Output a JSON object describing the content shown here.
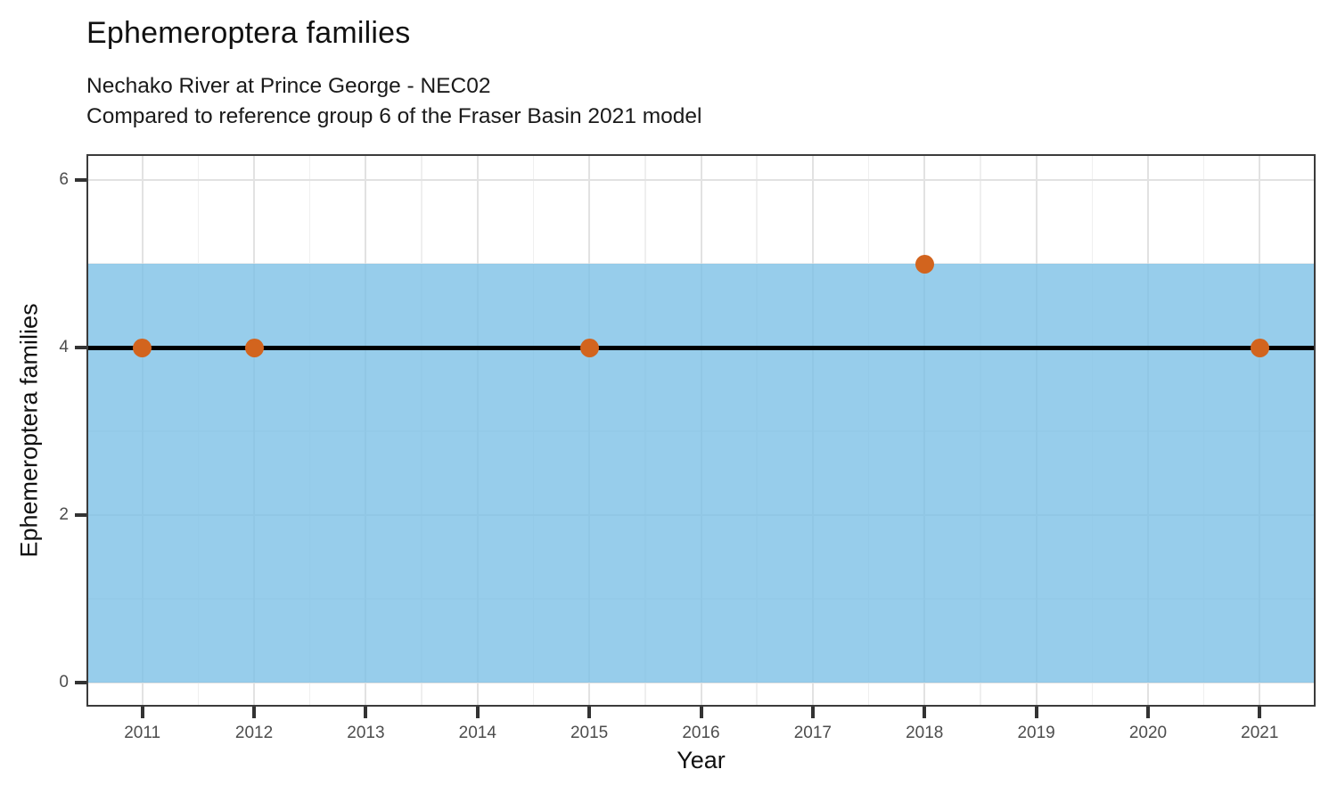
{
  "header": {
    "title": "Ephemeroptera families",
    "subtitle_line1": "Nechako River at Prince George - NEC02",
    "subtitle_line2": "Compared to reference group 6 of the Fraser Basin 2021 model"
  },
  "chart_data": {
    "type": "scatter",
    "title": "Ephemeroptera families",
    "subtitle": "Nechako River at Prince George - NEC02 / Compared to reference group 6 of the Fraser Basin 2021 model",
    "xlabel": "Year",
    "ylabel": "Ephemeroptera families",
    "xlim": [
      2010.5,
      2021.5
    ],
    "ylim": [
      -0.29,
      6.31
    ],
    "x_ticks": [
      2011,
      2012,
      2013,
      2014,
      2015,
      2016,
      2017,
      2018,
      2019,
      2020,
      2021
    ],
    "x_tick_labels": [
      "2011",
      "2012",
      "2013",
      "2014",
      "2015",
      "2016",
      "2017",
      "2018",
      "2019",
      "2020",
      "2021"
    ],
    "x_minor_ticks": [
      2011.5,
      2012.5,
      2013.5,
      2014.5,
      2015.5,
      2016.5,
      2017.5,
      2018.5,
      2019.5,
      2020.5
    ],
    "y_ticks": [
      0,
      2,
      4,
      6
    ],
    "y_tick_labels": [
      "0",
      "2",
      "4",
      "6"
    ],
    "y_minor_ticks": [
      1,
      3,
      5
    ],
    "grid": "on",
    "legend": "none",
    "reference_band": {
      "y_min": 0,
      "y_max": 5,
      "color": "#7ABFE6",
      "opacity": 0.78
    },
    "reference_line": {
      "y": 4,
      "color": "#000000"
    },
    "points": [
      {
        "x": 2011,
        "y": 4
      },
      {
        "x": 2012,
        "y": 4
      },
      {
        "x": 2015,
        "y": 4
      },
      {
        "x": 2018,
        "y": 5
      },
      {
        "x": 2021,
        "y": 4
      }
    ],
    "point_color": "#D2641E"
  },
  "colors": {
    "panel_border": "#3b3b3b",
    "tick_mark": "#333333",
    "tick_label": "#4d4d4d",
    "grid_major": "#e2e2e2",
    "grid_minor": "#efefef",
    "background": "#ffffff"
  }
}
